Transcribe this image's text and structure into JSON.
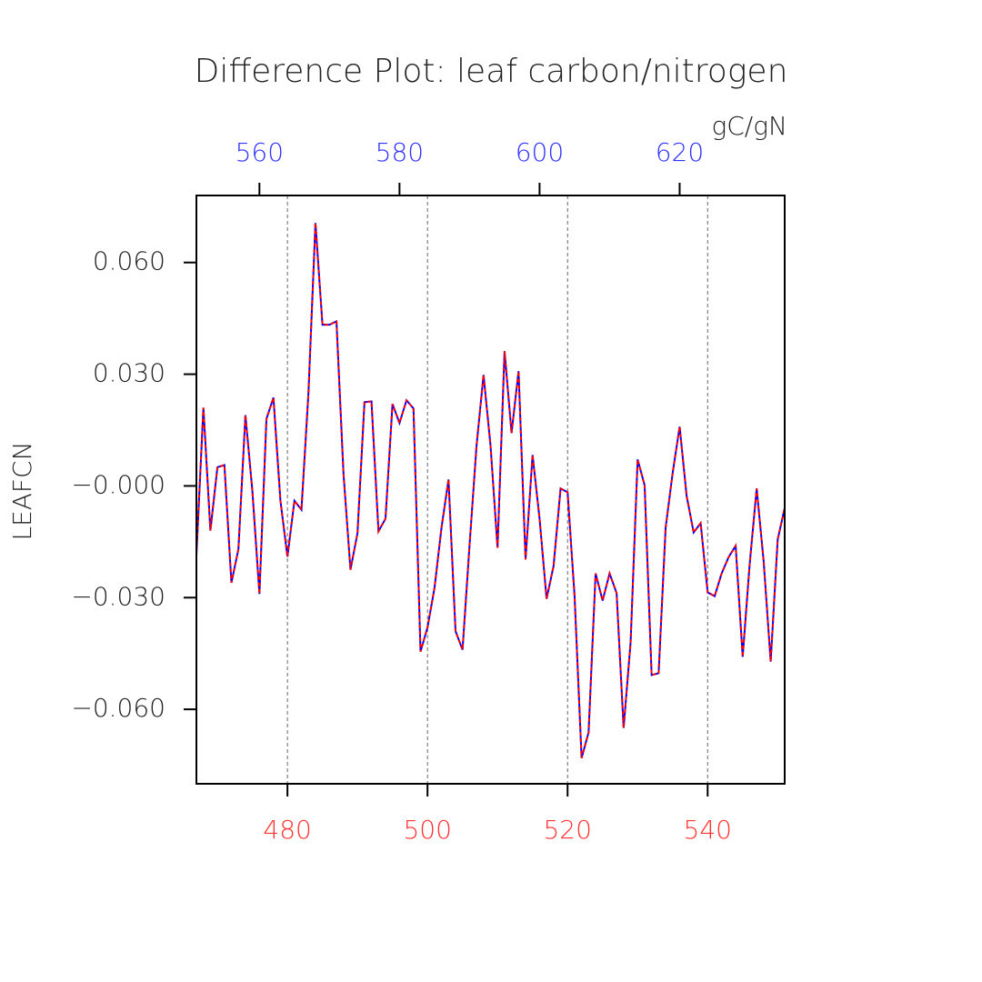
{
  "chart_data": {
    "type": "line",
    "title": "Difference Plot: leaf carbon/nitrogen",
    "y_label": "LEAFCN",
    "units": "gC/gN",
    "x": [
      467,
      468,
      469,
      470,
      471,
      472,
      473,
      474,
      475,
      476,
      477,
      478,
      479,
      480,
      481,
      482,
      483,
      484,
      485,
      486,
      487,
      488,
      489,
      490,
      491,
      492,
      493,
      494,
      495,
      496,
      497,
      498,
      499,
      500,
      501,
      502,
      503,
      504,
      505,
      506,
      507,
      508,
      509,
      510,
      511,
      512,
      513,
      514,
      515,
      516,
      517,
      518,
      519,
      520,
      521,
      522,
      523,
      524,
      525,
      526,
      527,
      528,
      529,
      530,
      531,
      532,
      533,
      534,
      535,
      536,
      537,
      538,
      539,
      540,
      541,
      542,
      543,
      544,
      545,
      546,
      547,
      548,
      549,
      550,
      551
    ],
    "series": [
      {
        "color": "#0000ff",
        "dash": false,
        "values": [
          -0.0186,
          0.021,
          -0.012,
          0.005,
          0.0056,
          -0.026,
          -0.017,
          0.019,
          -0.0015,
          -0.029,
          0.018,
          0.0237,
          -0.004,
          -0.019,
          -0.004,
          -0.0064,
          0.025,
          0.0706,
          0.0433,
          0.0433,
          0.0442,
          0.0034,
          -0.0225,
          -0.0127,
          0.0225,
          0.0227,
          -0.0122,
          -0.0088,
          0.022,
          0.0169,
          0.023,
          0.0208,
          -0.0445,
          -0.038,
          -0.0274,
          -0.0112,
          0.0017,
          -0.039,
          -0.044,
          -0.016,
          0.0108,
          0.0298,
          0.0108,
          -0.0166,
          0.0362,
          0.0142,
          0.0308,
          -0.0198,
          0.0083,
          -0.0088,
          -0.0303,
          -0.0215,
          -0.0007,
          -0.0017,
          -0.0296,
          -0.0731,
          -0.0662,
          -0.0235,
          -0.0308,
          -0.0235,
          -0.0288,
          -0.065,
          -0.042,
          0.0071,
          0.0002,
          -0.0508,
          -0.0503,
          -0.0112,
          0.0034,
          0.0159,
          -0.0027,
          -0.0125,
          -0.01,
          -0.0286,
          -0.0296,
          -0.0235,
          -0.0191,
          -0.0161,
          -0.0459,
          -0.021,
          -0.0007,
          -0.0203,
          -0.0472,
          -0.0144,
          -0.0059
        ]
      },
      {
        "color": "#ff0000",
        "dash": true,
        "values": [
          -0.0186,
          0.021,
          -0.012,
          0.005,
          0.0056,
          -0.026,
          -0.017,
          0.019,
          -0.0015,
          -0.029,
          0.018,
          0.0237,
          -0.004,
          -0.019,
          -0.004,
          -0.0064,
          0.025,
          0.0706,
          0.0433,
          0.0433,
          0.0442,
          0.0034,
          -0.0225,
          -0.0127,
          0.0225,
          0.0227,
          -0.0122,
          -0.0088,
          0.022,
          0.0169,
          0.023,
          0.0208,
          -0.0445,
          -0.038,
          -0.0274,
          -0.0112,
          0.0017,
          -0.039,
          -0.044,
          -0.016,
          0.0108,
          0.0298,
          0.0108,
          -0.0166,
          0.0362,
          0.0142,
          0.0308,
          -0.0198,
          0.0083,
          -0.0088,
          -0.0303,
          -0.0215,
          -0.0007,
          -0.0017,
          -0.0296,
          -0.0731,
          -0.0662,
          -0.0235,
          -0.0308,
          -0.0235,
          -0.0288,
          -0.065,
          -0.042,
          0.0071,
          0.0002,
          -0.0508,
          -0.0503,
          -0.0112,
          0.0034,
          0.0159,
          -0.0027,
          -0.0125,
          -0.01,
          -0.0286,
          -0.0296,
          -0.0235,
          -0.0191,
          -0.0161,
          -0.0459,
          -0.021,
          -0.0007,
          -0.0203,
          -0.0472,
          -0.0144,
          -0.0059
        ]
      }
    ],
    "xlim": [
      467,
      551
    ],
    "xticks": [
      480,
      500,
      520,
      540
    ],
    "xtick_color": "#ff3333",
    "x2lim": [
      551,
      635
    ],
    "x2ticks": [
      560,
      580,
      600,
      620
    ],
    "x2tick_color": "#3333ff",
    "ylim": [
      -0.08,
      0.078
    ],
    "yticks": [
      {
        "value": 0.06,
        "label": "0.060"
      },
      {
        "value": 0.03,
        "label": "0.030"
      },
      {
        "value": 0,
        "label": "−0.000"
      },
      {
        "value": -0.03,
        "label": "−0.030"
      },
      {
        "value": -0.06,
        "label": "−0.060"
      }
    ],
    "grid": true
  }
}
